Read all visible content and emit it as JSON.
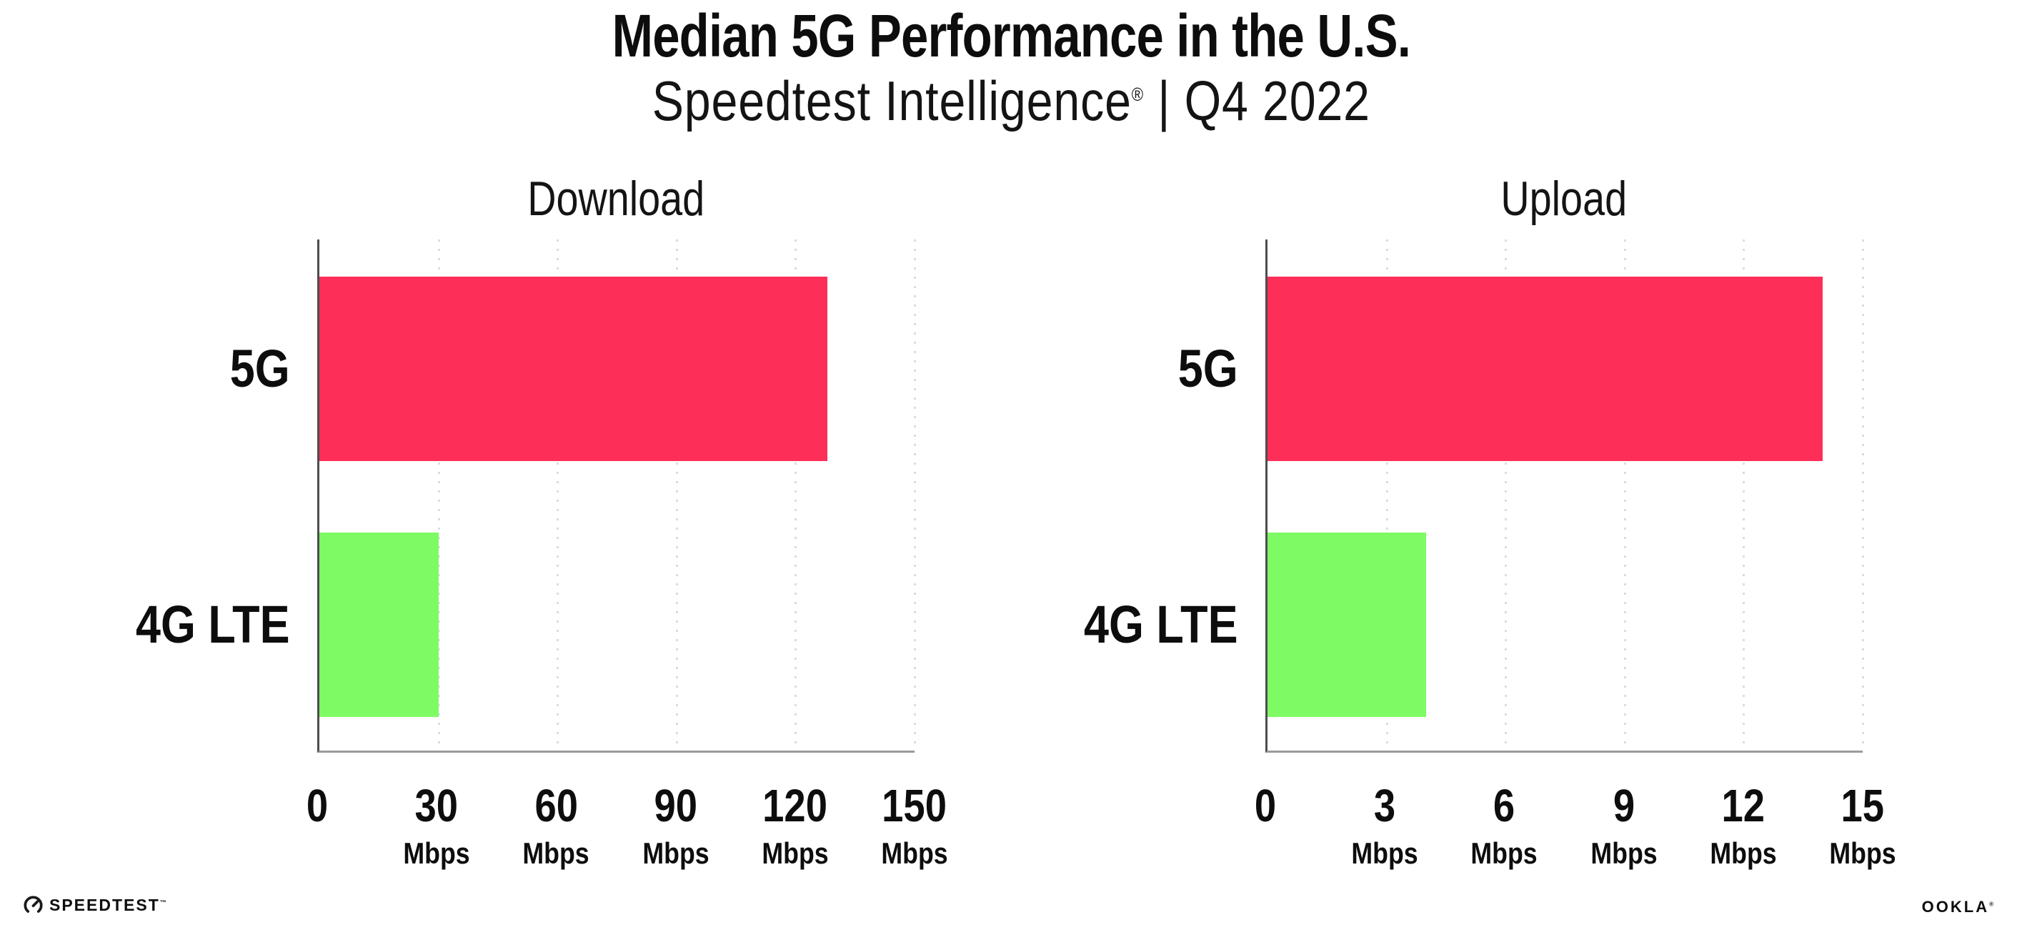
{
  "header": {
    "title": "Median 5G Performance in the U.S.",
    "subtitle_brand": "Speedtest Intelligence",
    "subtitle_reg": "®",
    "subtitle_rest": " | Q4 2022"
  },
  "chart_data": [
    {
      "type": "bar",
      "orientation": "horizontal",
      "title": "Download",
      "categories": [
        "5G",
        "4G LTE"
      ],
      "values": [
        128,
        30
      ],
      "unit": "Mbps",
      "xlim": [
        0,
        150
      ],
      "xticks": [
        0,
        30,
        60,
        90,
        120,
        150
      ],
      "bar_colors": [
        "#fd2e57",
        "#7efb64"
      ],
      "grid": "dotted-vertical",
      "legend": "none"
    },
    {
      "type": "bar",
      "orientation": "horizontal",
      "title": "Upload",
      "categories": [
        "5G",
        "4G LTE"
      ],
      "values": [
        14,
        4
      ],
      "unit": "Mbps",
      "xlim": [
        0,
        15
      ],
      "xticks": [
        0,
        3,
        6,
        9,
        12,
        15
      ],
      "bar_colors": [
        "#fd2e57",
        "#7efb64"
      ],
      "grid": "dotted-vertical",
      "legend": "none"
    }
  ],
  "colors": {
    "bar_5g": "#fd2e57",
    "bar_4g_lte": "#7efb64",
    "y_axis": "#4d4d4d",
    "x_axis": "#9b9b9b",
    "gridline": "#d9dce6",
    "text": "#0d0d0d"
  },
  "footer": {
    "speedtest_label": "SPEEDTEST",
    "speedtest_tm": "™",
    "ookla_label": "OOKLA",
    "ookla_reg": "®"
  }
}
